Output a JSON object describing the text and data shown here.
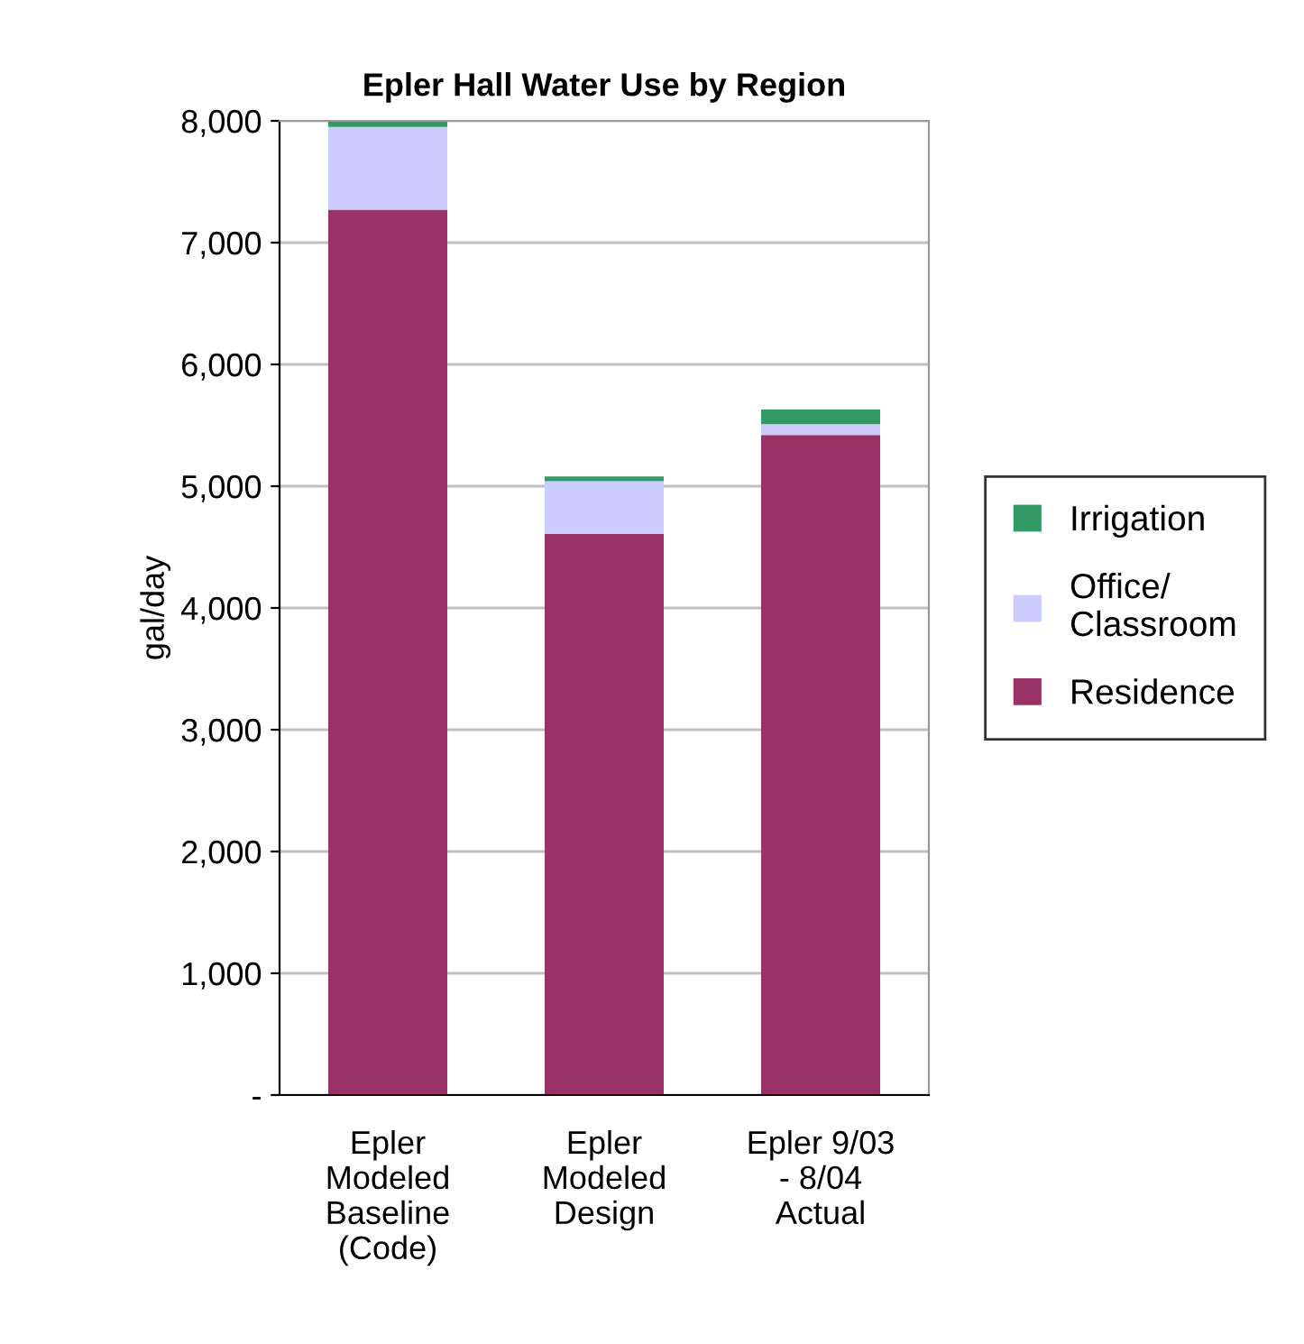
{
  "chart_data": {
    "type": "bar",
    "title": "Epler Hall Water Use by Region",
    "ylabel": "gal/day",
    "stacked": true,
    "categories": [
      "Epler\nModeled\nBaseline\n(Code)",
      "Epler\nModeled\nDesign",
      "Epler 9/03\n- 8/04\nActual"
    ],
    "series": [
      {
        "name": "Residence",
        "color": "#993366",
        "values": [
          7270,
          4610,
          5420
        ]
      },
      {
        "name": "Office/\nClassroom",
        "color": "#ccccff",
        "values": [
          680,
          430,
          90
        ]
      },
      {
        "name": "Irrigation",
        "color": "#339966",
        "values": [
          50,
          40,
          120
        ]
      }
    ],
    "ylim": [
      0,
      8000
    ],
    "yticks": [
      {
        "value": 0,
        "label": "-"
      },
      {
        "value": 1000,
        "label": "1,000"
      },
      {
        "value": 2000,
        "label": "2,000"
      },
      {
        "value": 3000,
        "label": "3,000"
      },
      {
        "value": 4000,
        "label": "4,000"
      },
      {
        "value": 5000,
        "label": "5,000"
      },
      {
        "value": 6000,
        "label": "6,000"
      },
      {
        "value": 7000,
        "label": "7,000"
      },
      {
        "value": 8000,
        "label": "8,000"
      }
    ],
    "grid": "y",
    "legend": "right"
  }
}
